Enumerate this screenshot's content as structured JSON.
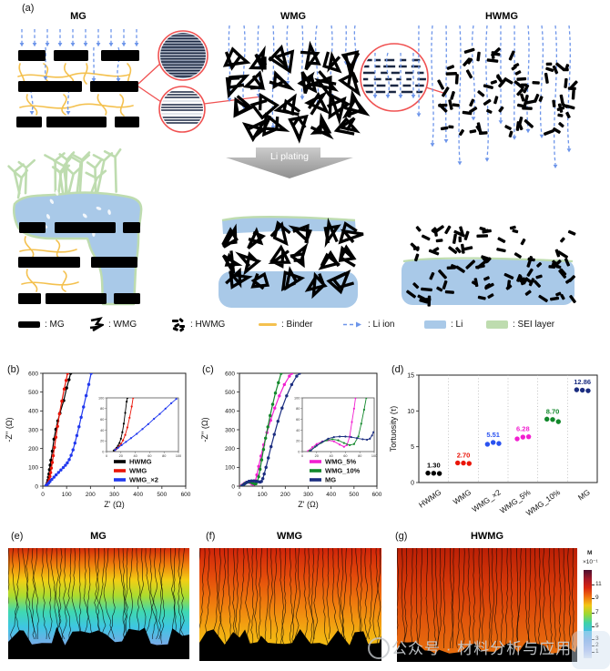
{
  "figure": {
    "panel_labels": {
      "a": "(a)",
      "b": "(b)",
      "c": "(c)",
      "d": "(d)"
    }
  },
  "panel_a": {
    "titles": [
      "MG",
      "WMG",
      "HWMG"
    ],
    "arrow_label": "Li plating",
    "legend": [
      {
        "name": "mg",
        "label": ": MG"
      },
      {
        "name": "wmg",
        "label": ": WMG"
      },
      {
        "name": "hwmg",
        "label": ": HWMG"
      },
      {
        "name": "binder",
        "label": ": Binder"
      },
      {
        "name": "li-ion",
        "label": ": Li ion"
      },
      {
        "name": "li",
        "label": ": Li"
      },
      {
        "name": "sei",
        "label": ": SEI layer"
      }
    ],
    "colors": {
      "graphite": "#000000",
      "binder": "#f4c14f",
      "li_ion": "#6d95ea",
      "li": "#a9c9e8",
      "sei": "#bedcaf",
      "magnifier": "#f05151",
      "layer": "#1a2742",
      "arrow_gray_light": "#cccccc",
      "arrow_gray_dark": "#8f8f8f"
    }
  },
  "chart_data": [
    {
      "id": "b",
      "type": "line",
      "xlabel": "Z' (Ω)",
      "ylabel": "-Z'' (Ω)",
      "xlim": [
        0,
        600
      ],
      "ylim": [
        0,
        600
      ],
      "xticks": [
        0,
        100,
        200,
        300,
        400,
        500,
        600
      ],
      "yticks": [
        0,
        100,
        200,
        300,
        400,
        500,
        600
      ],
      "legend_position": "below-inset",
      "series": [
        {
          "name": "HWMG",
          "color": "#000000",
          "points": [
            [
              13,
              2
            ],
            [
              16,
              6
            ],
            [
              18,
              12
            ],
            [
              20,
              20
            ],
            [
              22,
              32
            ],
            [
              24,
              48
            ],
            [
              26,
              65
            ],
            [
              28,
              88
            ],
            [
              31,
              112
            ],
            [
              34,
              138
            ],
            [
              40,
              186
            ],
            [
              47,
              250
            ],
            [
              55,
              302
            ],
            [
              63,
              347
            ],
            [
              72,
              388
            ],
            [
              88,
              455
            ],
            [
              100,
              522
            ],
            [
              110,
              566
            ],
            [
              117,
              600
            ]
          ]
        },
        {
          "name": "WMG",
          "color": "#ea1508",
          "points": [
            [
              15,
              3
            ],
            [
              18,
              8
            ],
            [
              21,
              14
            ],
            [
              24,
              22
            ],
            [
              27,
              35
            ],
            [
              30,
              52
            ],
            [
              33,
              72
            ],
            [
              36,
              96
            ],
            [
              40,
              126
            ],
            [
              44,
              162
            ],
            [
              49,
              206
            ],
            [
              55,
              260
            ],
            [
              62,
              318
            ],
            [
              70,
              384
            ],
            [
              80,
              452
            ],
            [
              90,
              516
            ],
            [
              98,
              562
            ],
            [
              104,
              600
            ]
          ]
        },
        {
          "name": "WMG_×2",
          "color": "#2038ef",
          "points": [
            [
              14,
              3
            ],
            [
              18,
              8
            ],
            [
              24,
              16
            ],
            [
              30,
              25
            ],
            [
              38,
              36
            ],
            [
              47,
              48
            ],
            [
              56,
              60
            ],
            [
              66,
              73
            ],
            [
              76,
              86
            ],
            [
              86,
              99
            ],
            [
              95,
              111
            ],
            [
              103,
              124
            ],
            [
              111,
              141
            ],
            [
              119,
              164
            ],
            [
              127,
              193
            ],
            [
              135,
              229
            ],
            [
              143,
              269
            ],
            [
              152,
              316
            ],
            [
              161,
              366
            ],
            [
              171,
              421
            ],
            [
              182,
              481
            ],
            [
              193,
              541
            ],
            [
              203,
              600
            ]
          ]
        }
      ],
      "inset": {
        "xlim": [
          0,
          100
        ],
        "ylim": [
          0,
          100
        ],
        "xticks": [
          0,
          20,
          40,
          60,
          80,
          100
        ],
        "yticks": [
          0,
          20,
          40,
          60,
          80,
          100
        ],
        "series": [
          {
            "color": "#000000",
            "points": [
              [
                10,
                2
              ],
              [
                12,
                4
              ],
              [
                14,
                7
              ],
              [
                16,
                11
              ],
              [
                18,
                16
              ],
              [
                20,
                24
              ],
              [
                22,
                36
              ],
              [
                24,
                52
              ],
              [
                26,
                72
              ],
              [
                28,
                93
              ],
              [
                29,
                100
              ]
            ]
          },
          {
            "color": "#ea1508",
            "points": [
              [
                12,
                3
              ],
              [
                14,
                5
              ],
              [
                17,
                9
              ],
              [
                20,
                14
              ],
              [
                23,
                21
              ],
              [
                26,
                31
              ],
              [
                29,
                45
              ],
              [
                32,
                63
              ],
              [
                35,
                84
              ],
              [
                37,
                100
              ]
            ]
          },
          {
            "color": "#2038ef",
            "points": [
              [
                12,
                3
              ],
              [
                16,
                7
              ],
              [
                21,
                12
              ],
              [
                27,
                18
              ],
              [
                34,
                25
              ],
              [
                42,
                33
              ],
              [
                50,
                42
              ],
              [
                58,
                51
              ],
              [
                66,
                61
              ],
              [
                74,
                70
              ],
              [
                82,
                80
              ],
              [
                90,
                90
              ],
              [
                97,
                98
              ]
            ]
          }
        ]
      }
    },
    {
      "id": "c",
      "type": "line",
      "xlabel": "Z' (Ω)",
      "ylabel": "-Z'' (Ω)",
      "xlim": [
        0,
        600
      ],
      "ylim": [
        0,
        600
      ],
      "xticks": [
        0,
        100,
        200,
        300,
        400,
        500,
        600
      ],
      "yticks": [
        0,
        100,
        200,
        300,
        400,
        500,
        600
      ],
      "legend_position": "below-inset",
      "series": [
        {
          "name": "WMG_5%",
          "color": "#f21fd0",
          "points": [
            [
              8,
              1
            ],
            [
              14,
              8
            ],
            [
              22,
              15
            ],
            [
              30,
              20
            ],
            [
              38,
              22
            ],
            [
              46,
              19
            ],
            [
              54,
              13
            ],
            [
              60,
              9
            ],
            [
              65,
              12
            ],
            [
              70,
              30
            ],
            [
              76,
              60
            ],
            [
              84,
              105
            ],
            [
              94,
              160
            ],
            [
              106,
              220
            ],
            [
              120,
              285
            ],
            [
              136,
              350
            ],
            [
              154,
              415
            ],
            [
              174,
              480
            ],
            [
              196,
              540
            ],
            [
              218,
              585
            ],
            [
              228,
              600
            ]
          ]
        },
        {
          "name": "WMG_10%",
          "color": "#12882b",
          "points": [
            [
              10,
              1
            ],
            [
              18,
              9
            ],
            [
              26,
              16
            ],
            [
              34,
              21
            ],
            [
              42,
              23
            ],
            [
              50,
              21
            ],
            [
              58,
              16
            ],
            [
              66,
              12
            ],
            [
              72,
              13
            ],
            [
              78,
              25
            ],
            [
              84,
              50
            ],
            [
              90,
              90
            ],
            [
              97,
              140
            ],
            [
              105,
              195
            ],
            [
              114,
              255
            ],
            [
              124,
              315
            ],
            [
              134,
              375
            ],
            [
              145,
              435
            ],
            [
              157,
              495
            ],
            [
              170,
              550
            ],
            [
              182,
              600
            ]
          ]
        },
        {
          "name": "MG",
          "color": "#1b2d80",
          "points": [
            [
              12,
              2
            ],
            [
              22,
              12
            ],
            [
              32,
              20
            ],
            [
              42,
              26
            ],
            [
              52,
              28
            ],
            [
              62,
              28
            ],
            [
              72,
              26
            ],
            [
              82,
              24
            ],
            [
              90,
              22
            ],
            [
              96,
              25
            ],
            [
              102,
              40
            ],
            [
              108,
              65
            ],
            [
              116,
              100
            ],
            [
              126,
              150
            ],
            [
              138,
              210
            ],
            [
              152,
              275
            ],
            [
              168,
              345
            ],
            [
              186,
              415
            ],
            [
              206,
              480
            ],
            [
              228,
              540
            ],
            [
              250,
              585
            ],
            [
              262,
              600
            ]
          ]
        }
      ],
      "inset": {
        "xlim": [
          0,
          100
        ],
        "ylim": [
          0,
          100
        ],
        "xticks": [
          0,
          20,
          40,
          60,
          80,
          100
        ],
        "yticks": [
          0,
          20,
          40,
          60,
          80,
          100
        ],
        "series": [
          {
            "color": "#f21fd0",
            "points": [
              [
                8,
                1
              ],
              [
                14,
                8
              ],
              [
                20,
                14
              ],
              [
                28,
                19
              ],
              [
                36,
                21
              ],
              [
                44,
                19
              ],
              [
                52,
                13
              ],
              [
                58,
                9
              ],
              [
                62,
                12
              ],
              [
                66,
                28
              ],
              [
                69,
                55
              ],
              [
                72,
                80
              ],
              [
                74,
                100
              ]
            ]
          },
          {
            "color": "#12882b",
            "points": [
              [
                10,
                1
              ],
              [
                18,
                9
              ],
              [
                26,
                16
              ],
              [
                34,
                21
              ],
              [
                42,
                23
              ],
              [
                50,
                21
              ],
              [
                58,
                16
              ],
              [
                66,
                12
              ],
              [
                72,
                14
              ],
              [
                78,
                28
              ],
              [
                82,
                52
              ],
              [
                86,
                78
              ],
              [
                89,
                100
              ]
            ]
          },
          {
            "color": "#1b2d80",
            "points": [
              [
                12,
                2
              ],
              [
                20,
                11
              ],
              [
                28,
                18
              ],
              [
                36,
                24
              ],
              [
                44,
                27
              ],
              [
                52,
                28
              ],
              [
                60,
                28
              ],
              [
                68,
                27
              ],
              [
                76,
                25
              ],
              [
                84,
                23
              ],
              [
                90,
                22
              ],
              [
                94,
                24
              ],
              [
                97,
                30
              ],
              [
                99,
                36
              ]
            ]
          }
        ]
      }
    },
    {
      "id": "d",
      "type": "scatter",
      "ylabel": "Tortuosity (τ)",
      "ylim": [
        0,
        15
      ],
      "yticks": [
        0,
        5,
        10,
        15
      ],
      "categories": [
        "HWMG",
        "WMG",
        "WMG_×2",
        "WMG_5%",
        "WMG_10%",
        "MG"
      ],
      "colors": [
        "#000000",
        "#ea1508",
        "#2a52f0",
        "#f21fd0",
        "#12882b",
        "#1b2d80"
      ],
      "value_labels": [
        "1.30",
        "2.70",
        "5.51",
        "6.28",
        "8.70",
        "12.86"
      ],
      "values": [
        1.3,
        2.7,
        5.51,
        6.28,
        8.7,
        12.86
      ],
      "dot_values": [
        [
          1.32,
          1.3,
          1.26
        ],
        [
          2.74,
          2.72,
          2.66
        ],
        [
          5.35,
          5.6,
          5.45
        ],
        [
          6.1,
          6.35,
          6.4
        ],
        [
          8.85,
          8.8,
          8.5
        ],
        [
          12.95,
          12.9,
          12.82
        ]
      ]
    }
  ],
  "panels_efg": [
    {
      "label": "(e)",
      "title": "MG",
      "gradient": [
        "#d22b08",
        "#ee7a0c",
        "#f2cf14",
        "#abdc30",
        "#3fd8b0",
        "#3ec6e2",
        "#74ace6",
        "#9f9bdc"
      ]
    },
    {
      "label": "(f)",
      "title": "WMG",
      "gradient": [
        "#cf2409",
        "#e44b0b",
        "#ef7d0e",
        "#f3ae12",
        "#f2cf16"
      ]
    },
    {
      "label": "(g)",
      "title": "HWMG",
      "gradient": [
        "#bb1f06",
        "#d63908",
        "#e25a0c",
        "#e9740f"
      ]
    }
  ],
  "colorbar": {
    "label_top": "M",
    "label_exp": "×10⁻¹",
    "ticks": [
      {
        "v": "11",
        "p": 0.16
      },
      {
        "v": "9",
        "p": 0.32
      },
      {
        "v": "7",
        "p": 0.48
      },
      {
        "v": "5",
        "p": 0.635
      },
      {
        "v": "3",
        "p": 0.785
      },
      {
        "v": "2",
        "p": 0.855
      },
      {
        "v": "1",
        "p": 0.93
      }
    ],
    "gradient": [
      "#4b1030",
      "#a2182a",
      "#d82611",
      "#ef6e0e",
      "#f3c614",
      "#9cd832",
      "#3ed2a8",
      "#44bce4",
      "#7daae8",
      "#a8bcf0",
      "#dfe6f6"
    ]
  },
  "watermark": {
    "text": "公众号 · 材料分析与应用"
  }
}
